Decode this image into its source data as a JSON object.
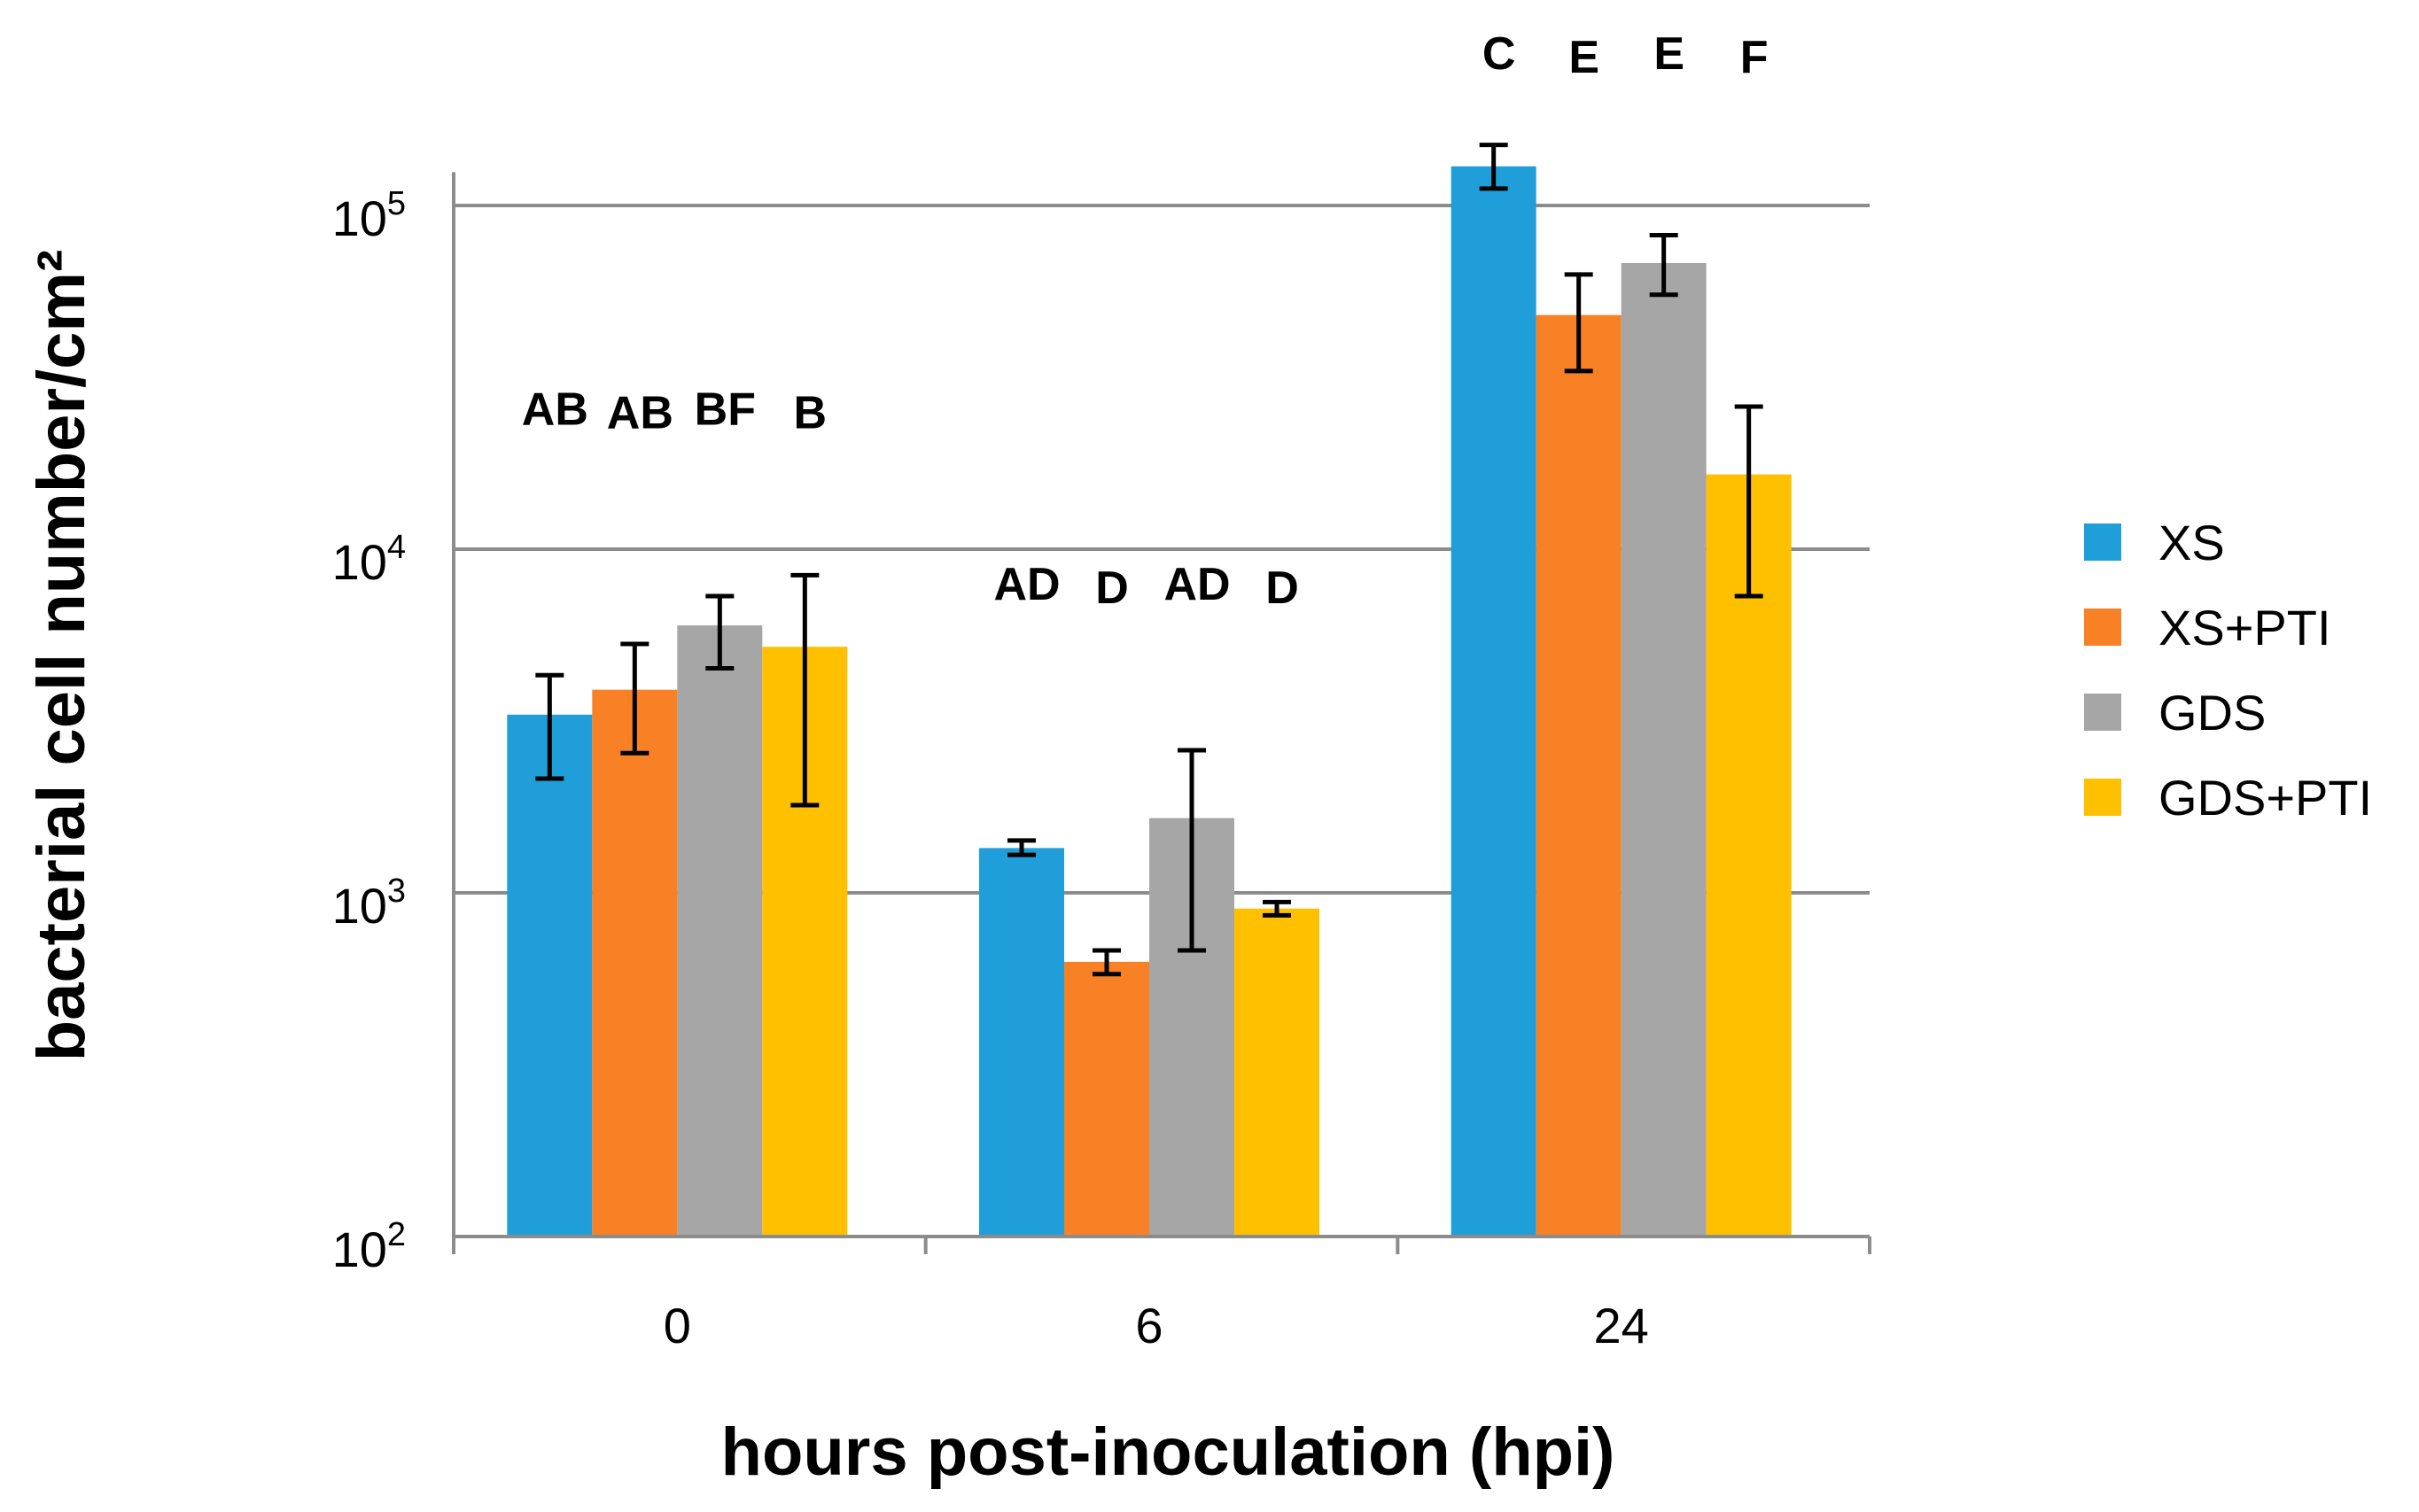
{
  "chart_data": {
    "type": "bar",
    "title": "",
    "xlabel": "hours post-inoculation (hpi)",
    "ylabel": "bacterial cell number/cm²",
    "yscale": "log10",
    "ylim": [
      100,
      125000
    ],
    "yticks": [
      {
        "value": 100,
        "base": "10",
        "exp": "2"
      },
      {
        "value": 1000,
        "base": "10",
        "exp": "3"
      },
      {
        "value": 10000,
        "base": "10",
        "exp": "4"
      },
      {
        "value": 100000,
        "base": "10",
        "exp": "5"
      }
    ],
    "grid": true,
    "legend_position": "right",
    "categories": [
      "0",
      "6",
      "24"
    ],
    "series": [
      {
        "name": "XS",
        "color": "#1f9ed9",
        "values": [
          3300,
          1350,
          130000
        ],
        "err_low": [
          2150,
          1290,
          112000
        ],
        "err_high": [
          4300,
          1420,
          150000
        ],
        "letters": [
          "AB",
          "AD",
          "C"
        ]
      },
      {
        "name": "XS+PTI",
        "color": "#f88125",
        "values": [
          3900,
          630,
          48000
        ],
        "err_low": [
          2550,
          580,
          33000
        ],
        "err_high": [
          5300,
          680,
          63000
        ],
        "letters": [
          "AB",
          "D",
          "E"
        ]
      },
      {
        "name": "GDS",
        "color": "#a6a6a6",
        "values": [
          6000,
          1650,
          68000
        ],
        "err_low": [
          4500,
          680,
          55000
        ],
        "err_high": [
          7300,
          2600,
          82000
        ],
        "letters": [
          "BF",
          "AD",
          "E"
        ]
      },
      {
        "name": "GDS+PTI",
        "color": "#ffc000",
        "values": [
          5200,
          900,
          16500
        ],
        "err_low": [
          1800,
          860,
          7300
        ],
        "err_high": [
          8400,
          940,
          26000
        ],
        "letters": [
          "B",
          "D",
          "F"
        ]
      }
    ]
  }
}
